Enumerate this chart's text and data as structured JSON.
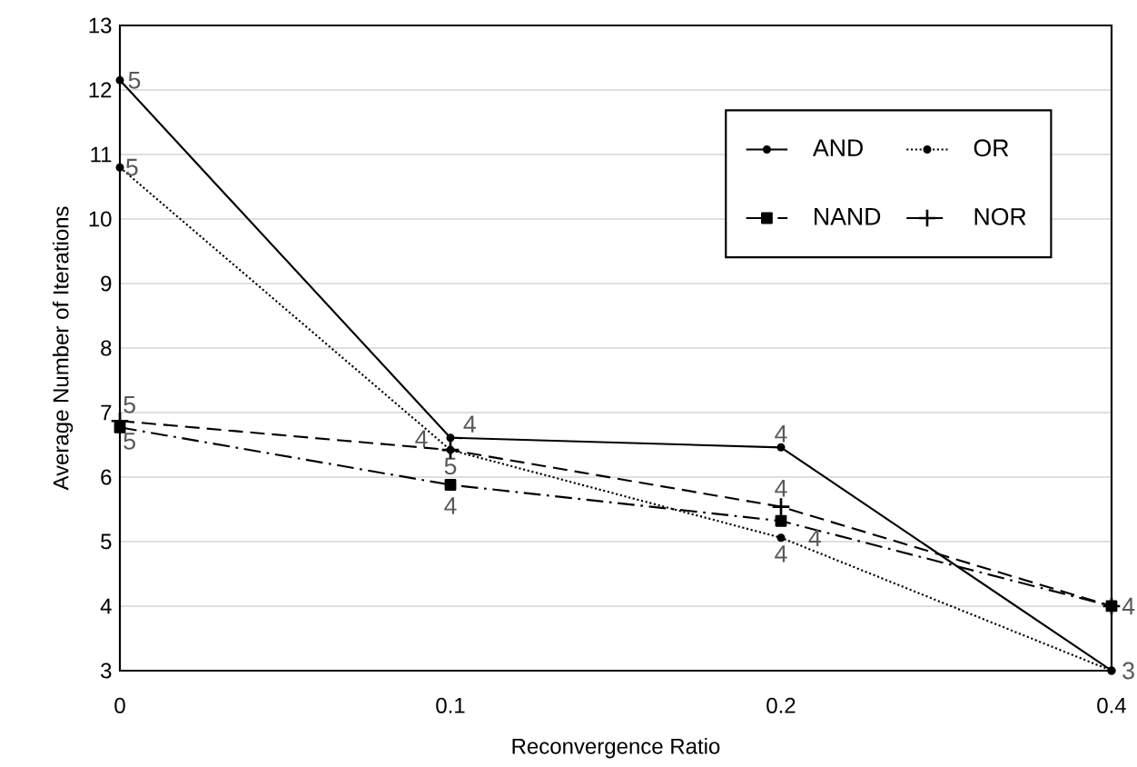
{
  "chart_data": {
    "type": "line",
    "xlabel": "Reconvergence Ratio",
    "ylabel": "Average Number of Iterations",
    "categories": [
      "0",
      "0.1",
      "0.2",
      "0.4"
    ],
    "series": [
      {
        "name": "AND",
        "color": "#000000",
        "marker": "circle",
        "line_style": "solid",
        "values": [
          12.15,
          6.61,
          6.46,
          3
        ]
      },
      {
        "name": "OR",
        "color": "#000000",
        "marker": "circle",
        "line_style": "dotted",
        "values": [
          10.8,
          6.42,
          5.06,
          3
        ]
      },
      {
        "name": "NAND",
        "color": "#000000",
        "marker": "square",
        "line_style": "dashdot",
        "values": [
          6.77,
          5.88,
          5.32,
          4
        ]
      },
      {
        "name": "NOR",
        "color": "#000000",
        "marker": "cross",
        "line_style": "dashed",
        "values": [
          6.87,
          6.42,
          5.54,
          4
        ]
      }
    ],
    "ylim": [
      3,
      13
    ],
    "yticks": [
      3,
      4,
      5,
      6,
      7,
      8,
      9,
      10,
      11,
      12,
      13
    ],
    "grid": "y",
    "legend": "top right",
    "annotations": [
      {
        "text": "5",
        "x": "0",
        "y": 12.15
      },
      {
        "text": "5",
        "x": "0",
        "y": 10.8
      },
      {
        "text": "5",
        "x": "0",
        "y": 6.87
      },
      {
        "text": "5",
        "x": "0",
        "y": 6.77
      },
      {
        "text": "4",
        "x": "0.1",
        "y": 6.61
      },
      {
        "text": "4",
        "x": "0.1",
        "y": 6.42
      },
      {
        "text": "5",
        "x": "0.1",
        "y": 6.42
      },
      {
        "text": "4",
        "x": "0.1",
        "y": 5.88
      },
      {
        "text": "4",
        "x": "0.2",
        "y": 6.46
      },
      {
        "text": "4",
        "x": "0.2",
        "y": 5.54
      },
      {
        "text": "4",
        "x": "0.2",
        "y": 5.32
      },
      {
        "text": "4",
        "x": "0.2",
        "y": 5.06
      },
      {
        "text": "4",
        "x": "0.4",
        "y": 4
      },
      {
        "text": "3",
        "x": "0.4",
        "y": 3
      }
    ]
  }
}
